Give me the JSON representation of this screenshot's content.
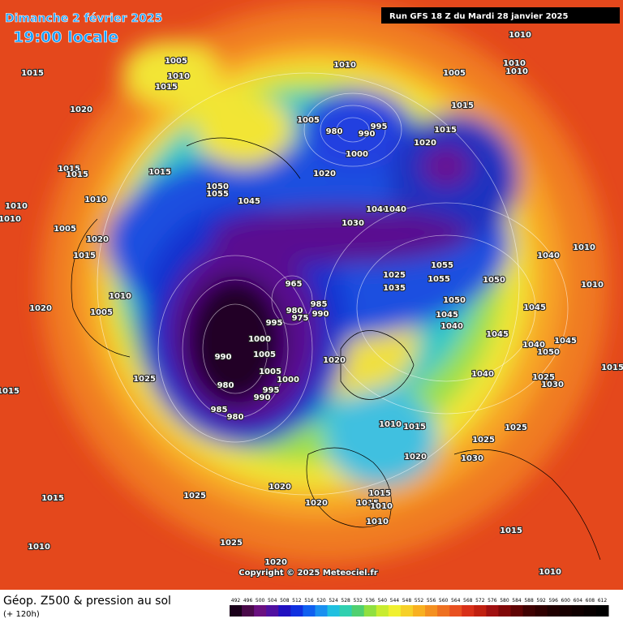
{
  "header": {
    "date": "Dimanche 2 février 2025",
    "time": "19:00 locale",
    "run": "Run GFS 18 Z du Mardi 28 janvier 2025"
  },
  "pressure_labels": [
    "1015",
    "1020",
    "1005",
    "1010",
    "1015",
    "1015",
    "1015",
    "1010",
    "1010",
    "1010",
    "1005",
    "1020",
    "1015",
    "1010",
    "1005",
    "1020",
    "1015",
    "1025",
    "1015",
    "1050",
    "1055",
    "1045",
    "1010",
    "1005",
    "980",
    "990",
    "995",
    "1000",
    "1020",
    "1020",
    "1015",
    "1015",
    "1005",
    "1010",
    "1010",
    "1010",
    "1030",
    "1040",
    "1040",
    "1055",
    "1055",
    "1050",
    "1050",
    "1045",
    "1040",
    "1045",
    "1045",
    "1040",
    "1040",
    "1050",
    "1045",
    "1025",
    "1030",
    "1040",
    "1025",
    "1025",
    "1030",
    "1010",
    "1010",
    "1015",
    "1025",
    "1035",
    "965",
    "985",
    "990",
    "980",
    "975",
    "995",
    "1000",
    "1005",
    "990",
    "980",
    "985",
    "980",
    "990",
    "995",
    "1000",
    "1005",
    "1020",
    "1010",
    "1015",
    "1020",
    "1020",
    "1020",
    "1015",
    "1015",
    "1010",
    "1010",
    "1015",
    "1025",
    "1010",
    "1025",
    "1020",
    "1015",
    "1010"
  ],
  "footer": {
    "title": "Géop. Z500 & pression au sol",
    "lead": "(+ 120h)",
    "copyright": "Copyright © 2025 Meteociel.fr"
  },
  "colorbar": {
    "ticks": [
      492,
      496,
      500,
      504,
      508,
      512,
      516,
      520,
      524,
      528,
      532,
      536,
      540,
      544,
      548,
      552,
      556,
      560,
      564,
      568,
      572,
      576,
      580,
      584,
      588,
      592,
      596,
      600,
      604,
      608,
      612
    ]
  }
}
